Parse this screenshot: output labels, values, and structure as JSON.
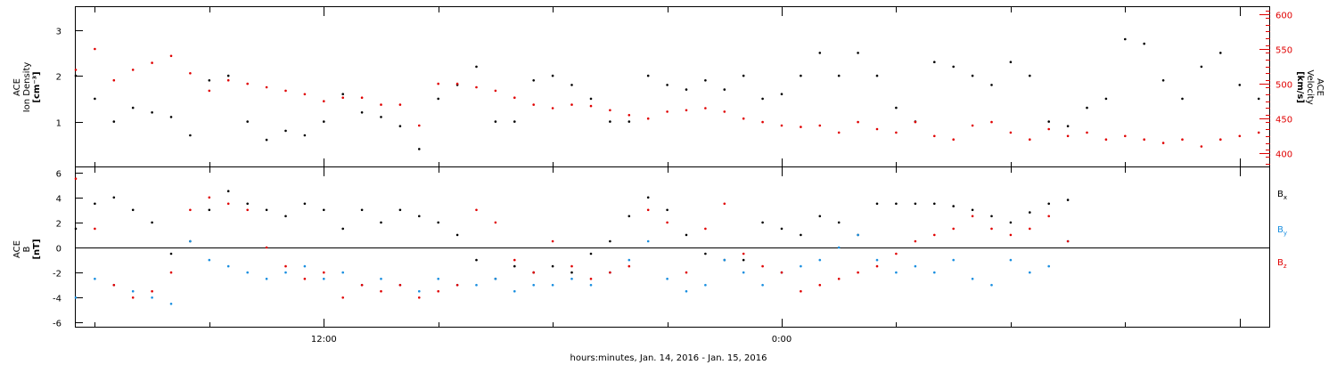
{
  "x_title": "hours:minutes, Jan. 14, 2016 - Jan. 15, 2016",
  "colors": {
    "black": "#000000",
    "red": "#e00000",
    "blue": "#1a8fe0"
  },
  "chart_data": [
    {
      "type": "scatter",
      "panel": "top",
      "ylabel_left": [
        "ACE",
        "Ion Density",
        "[cm⁻³]"
      ],
      "ylabel_right": [
        "ACE",
        "Velocity",
        "[km/s]"
      ],
      "left_axis": {
        "ylim": [
          0,
          3.5
        ],
        "ticks": [
          1,
          2,
          3
        ],
        "tick_labels": [
          "1",
          "2",
          "3"
        ]
      },
      "right_axis": {
        "ylim": [
          380,
          610
        ],
        "ticks": [
          400,
          450,
          500,
          550,
          600
        ],
        "tick_labels": [
          "400",
          "450",
          "500",
          "550",
          "600"
        ]
      },
      "x_ticks": [
        12,
        24
      ],
      "x_tick_labels": [
        "12:00",
        "0:00"
      ],
      "xlim": [
        5.5,
        36.8
      ],
      "series": [
        {
          "axis": "left",
          "color": "#000000",
          "x": [
            5.5,
            6.0,
            6.5,
            7.0,
            7.5,
            8.0,
            8.5,
            9.0,
            9.5,
            10.0,
            10.5,
            11.0,
            11.5,
            12.0,
            12.5,
            13.0,
            13.5,
            14.0,
            14.5,
            15.0,
            15.5,
            16.0,
            16.5,
            17.0,
            17.5,
            18.0,
            18.5,
            19.0,
            19.5,
            20.0,
            20.5,
            21.0,
            21.5,
            22.0,
            22.5,
            23.0,
            23.5,
            24.0,
            24.5,
            25.0,
            25.5,
            26.0,
            26.5,
            27.0,
            27.5,
            28.0,
            28.5,
            29.0,
            29.5,
            30.0,
            30.5,
            31.0,
            31.5,
            32.0,
            32.5,
            33.0,
            33.5,
            34.0,
            34.5,
            35.0,
            35.5,
            36.0,
            36.5
          ],
          "y": [
            2.0,
            1.5,
            1.0,
            1.3,
            1.2,
            1.1,
            0.7,
            1.9,
            2.0,
            1.0,
            0.6,
            0.8,
            0.7,
            1.0,
            1.6,
            1.2,
            1.1,
            0.9,
            0.4,
            1.5,
            1.8,
            2.2,
            1.0,
            1.0,
            1.9,
            2.0,
            1.8,
            1.5,
            1.0,
            1.0,
            2.0,
            1.8,
            1.7,
            1.9,
            1.7,
            2.0,
            1.5,
            1.6,
            2.0,
            2.5,
            2.0,
            2.5,
            2.0,
            1.3,
            1.0,
            2.3,
            2.2,
            2.0,
            1.8,
            2.3,
            2.0,
            1.0,
            0.9,
            1.3,
            1.5,
            2.8,
            2.7,
            1.9,
            1.5,
            2.2,
            2.5,
            1.8,
            1.5
          ]
        },
        {
          "axis": "right",
          "color": "#e00000",
          "x": [
            5.5,
            6.0,
            6.5,
            7.0,
            7.5,
            8.0,
            8.5,
            9.0,
            9.5,
            10.0,
            10.5,
            11.0,
            11.5,
            12.0,
            12.5,
            13.0,
            13.5,
            14.0,
            14.5,
            15.0,
            15.5,
            16.0,
            16.5,
            17.0,
            17.5,
            18.0,
            18.5,
            19.0,
            19.5,
            20.0,
            20.5,
            21.0,
            21.5,
            22.0,
            22.5,
            23.0,
            23.5,
            24.0,
            24.5,
            25.0,
            25.5,
            26.0,
            26.5,
            27.0,
            27.5,
            28.0,
            28.5,
            29.0,
            29.5,
            30.0,
            30.5,
            31.0,
            31.5,
            32.0,
            32.5,
            33.0,
            33.5,
            34.0,
            34.5,
            35.0,
            35.5,
            36.0,
            36.5
          ],
          "y": [
            520,
            550,
            505,
            520,
            530,
            540,
            515,
            490,
            505,
            500,
            495,
            490,
            485,
            475,
            480,
            480,
            470,
            470,
            440,
            500,
            500,
            495,
            490,
            480,
            470,
            465,
            470,
            468,
            462,
            455,
            450,
            460,
            462,
            465,
            460,
            450,
            445,
            440,
            438,
            440,
            430,
            445,
            435,
            430,
            445,
            425,
            420,
            440,
            445,
            430,
            420,
            435,
            425,
            430,
            420,
            425,
            420,
            415,
            420,
            410,
            420,
            425,
            430
          ]
        }
      ]
    },
    {
      "type": "scatter",
      "panel": "bottom",
      "ylabel_left": [
        "ACE",
        "B",
        "[nT]"
      ],
      "ylim": [
        -6.4,
        6.4
      ],
      "ticks": [
        -6,
        -4,
        -2,
        0,
        2,
        4,
        6
      ],
      "tick_labels": [
        "-6",
        "-4",
        "-2",
        "0",
        "2",
        "4",
        "6"
      ],
      "x_ticks": [
        12,
        24
      ],
      "x_tick_labels": [
        "12:00",
        "0:00"
      ],
      "xlim": [
        5.5,
        36.8
      ],
      "zero_line": 0,
      "series": [
        {
          "name": "B",
          "sub": "x",
          "color": "#000000",
          "x": [
            5.5,
            6.0,
            6.5,
            7.0,
            7.5,
            8.0,
            8.5,
            9.0,
            9.5,
            10.0,
            10.5,
            11.0,
            11.5,
            12.0,
            12.5,
            13.0,
            13.5,
            14.0,
            14.5,
            15.0,
            15.5,
            16.0,
            16.5,
            17.0,
            17.5,
            18.0,
            18.5,
            19.0,
            19.5,
            20.0,
            20.5,
            21.0,
            21.5,
            22.0,
            22.5,
            23.0,
            23.5,
            24.0,
            24.5,
            25.0,
            25.5,
            26.0,
            26.5,
            27.0,
            27.5,
            28.0,
            28.5,
            29.0,
            29.5,
            30.0,
            30.5,
            31.0,
            31.5
          ],
          "y": [
            1.5,
            3.5,
            4.0,
            3.0,
            2.0,
            -0.5,
            0.5,
            3.0,
            4.5,
            3.5,
            3.0,
            2.5,
            3.5,
            3.0,
            1.5,
            3.0,
            2.0,
            3.0,
            2.5,
            2.0,
            1.0,
            -1.0,
            -2.5,
            -1.5,
            -2.0,
            -1.5,
            -2.0,
            -0.5,
            0.5,
            2.5,
            4.0,
            3.0,
            1.0,
            -0.5,
            -1.0,
            -1.0,
            2.0,
            1.5,
            1.0,
            2.5,
            2.0,
            1.0,
            3.5,
            3.5,
            3.5,
            3.5,
            3.3,
            3.0,
            2.5,
            2.0,
            2.8,
            3.5,
            3.8
          ]
        },
        {
          "name": "B",
          "sub": "y",
          "color": "#1a8fe0",
          "x": [
            5.5,
            6.0,
            6.5,
            7.0,
            7.5,
            8.0,
            8.5,
            9.0,
            9.5,
            10.0,
            10.5,
            11.0,
            11.5,
            12.0,
            12.5,
            13.0,
            13.5,
            14.0,
            14.5,
            15.0,
            15.5,
            16.0,
            16.5,
            17.0,
            17.5,
            18.0,
            18.5,
            19.0,
            19.5,
            20.0,
            20.5,
            21.0,
            21.5,
            22.0,
            22.5,
            23.0,
            23.5,
            24.0,
            24.5,
            25.0,
            25.5,
            26.0,
            26.5,
            27.0,
            27.5,
            28.0,
            28.5,
            29.0,
            29.5,
            30.0,
            30.5,
            31.0,
            31.5
          ],
          "y": [
            -4.0,
            -2.5,
            -3.0,
            -3.5,
            -4.0,
            -4.5,
            0.5,
            -1.0,
            -1.5,
            -2.0,
            -2.5,
            -2.0,
            -1.5,
            -2.5,
            -2.0,
            -3.0,
            -2.5,
            -3.0,
            -3.5,
            -2.5,
            -3.0,
            -3.0,
            -2.5,
            -3.5,
            -3.0,
            -3.0,
            -2.5,
            -3.0,
            -2.0,
            -1.0,
            0.5,
            -2.5,
            -3.5,
            -3.0,
            -1.0,
            -2.0,
            -3.0,
            -2.0,
            -1.5,
            -1.0,
            0.0,
            1.0,
            -1.0,
            -2.0,
            -1.5,
            -2.0,
            -1.0,
            -2.5,
            -3.0,
            -1.0,
            -2.0,
            -1.5,
            0.5
          ]
        },
        {
          "name": "B",
          "sub": "z",
          "color": "#e00000",
          "x": [
            5.5,
            6.0,
            6.5,
            7.0,
            7.5,
            8.0,
            8.5,
            9.0,
            9.5,
            10.0,
            10.5,
            11.0,
            11.5,
            12.0,
            12.5,
            13.0,
            13.5,
            14.0,
            14.5,
            15.0,
            15.5,
            16.0,
            16.5,
            17.0,
            17.5,
            18.0,
            18.5,
            19.0,
            19.5,
            20.0,
            20.5,
            21.0,
            21.5,
            22.0,
            22.5,
            23.0,
            23.5,
            24.0,
            24.5,
            25.0,
            25.5,
            26.0,
            26.5,
            27.0,
            27.5,
            28.0,
            28.5,
            29.0,
            29.5,
            30.0,
            30.5,
            31.0,
            31.5
          ],
          "y": [
            5.5,
            1.5,
            -3.0,
            -4.0,
            -3.5,
            -2.0,
            3.0,
            4.0,
            3.5,
            3.0,
            0.0,
            -1.5,
            -2.5,
            -2.0,
            -4.0,
            -3.0,
            -3.5,
            -3.0,
            -4.0,
            -3.5,
            -3.0,
            3.0,
            2.0,
            -1.0,
            -2.0,
            0.5,
            -1.5,
            -2.5,
            -2.0,
            -1.5,
            3.0,
            2.0,
            -2.0,
            1.5,
            3.5,
            -0.5,
            -1.5,
            -2.0,
            -3.5,
            -3.0,
            -2.5,
            -2.0,
            -1.5,
            -0.5,
            0.5,
            1.0,
            1.5,
            2.5,
            1.5,
            1.0,
            1.5,
            2.5,
            0.5
          ]
        }
      ]
    }
  ]
}
